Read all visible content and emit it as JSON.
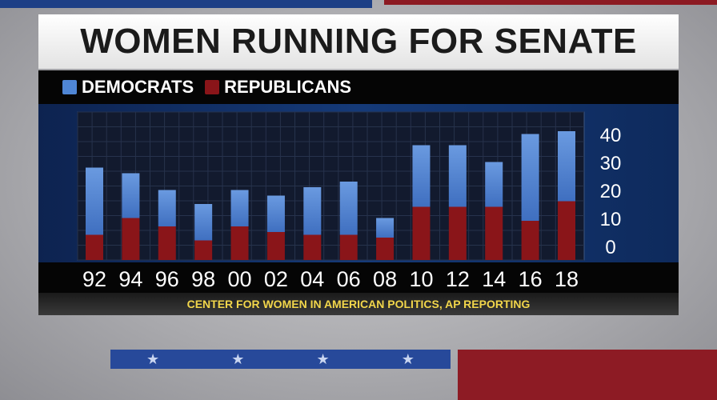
{
  "title": "WOMEN RUNNING FOR SENATE",
  "source": "CENTER FOR WOMEN IN AMERICAN POLITICS, AP REPORTING",
  "colors": {
    "democrats": "#4f86d6",
    "republicans": "#8a1519"
  },
  "chart_data": {
    "type": "bar",
    "stacked": true,
    "title": "WOMEN RUNNING FOR SENATE",
    "categories": [
      "92",
      "94",
      "96",
      "98",
      "00",
      "02",
      "04",
      "06",
      "08",
      "10",
      "12",
      "14",
      "16",
      "18"
    ],
    "series": [
      {
        "name": "REPUBLICANS",
        "values": [
          9,
          15,
          12,
          7,
          12,
          10,
          9,
          9,
          8,
          19,
          19,
          19,
          14,
          21
        ]
      },
      {
        "name": "DEMOCRATS",
        "values": [
          24,
          16,
          13,
          13,
          13,
          13,
          17,
          19,
          7,
          22,
          22,
          16,
          31,
          25
        ]
      }
    ],
    "yticks": [
      "0",
      "10",
      "20",
      "30",
      "40"
    ],
    "ylim": [
      0,
      50
    ],
    "y_axis_side": "right",
    "grid": true,
    "legend": "top-left"
  }
}
